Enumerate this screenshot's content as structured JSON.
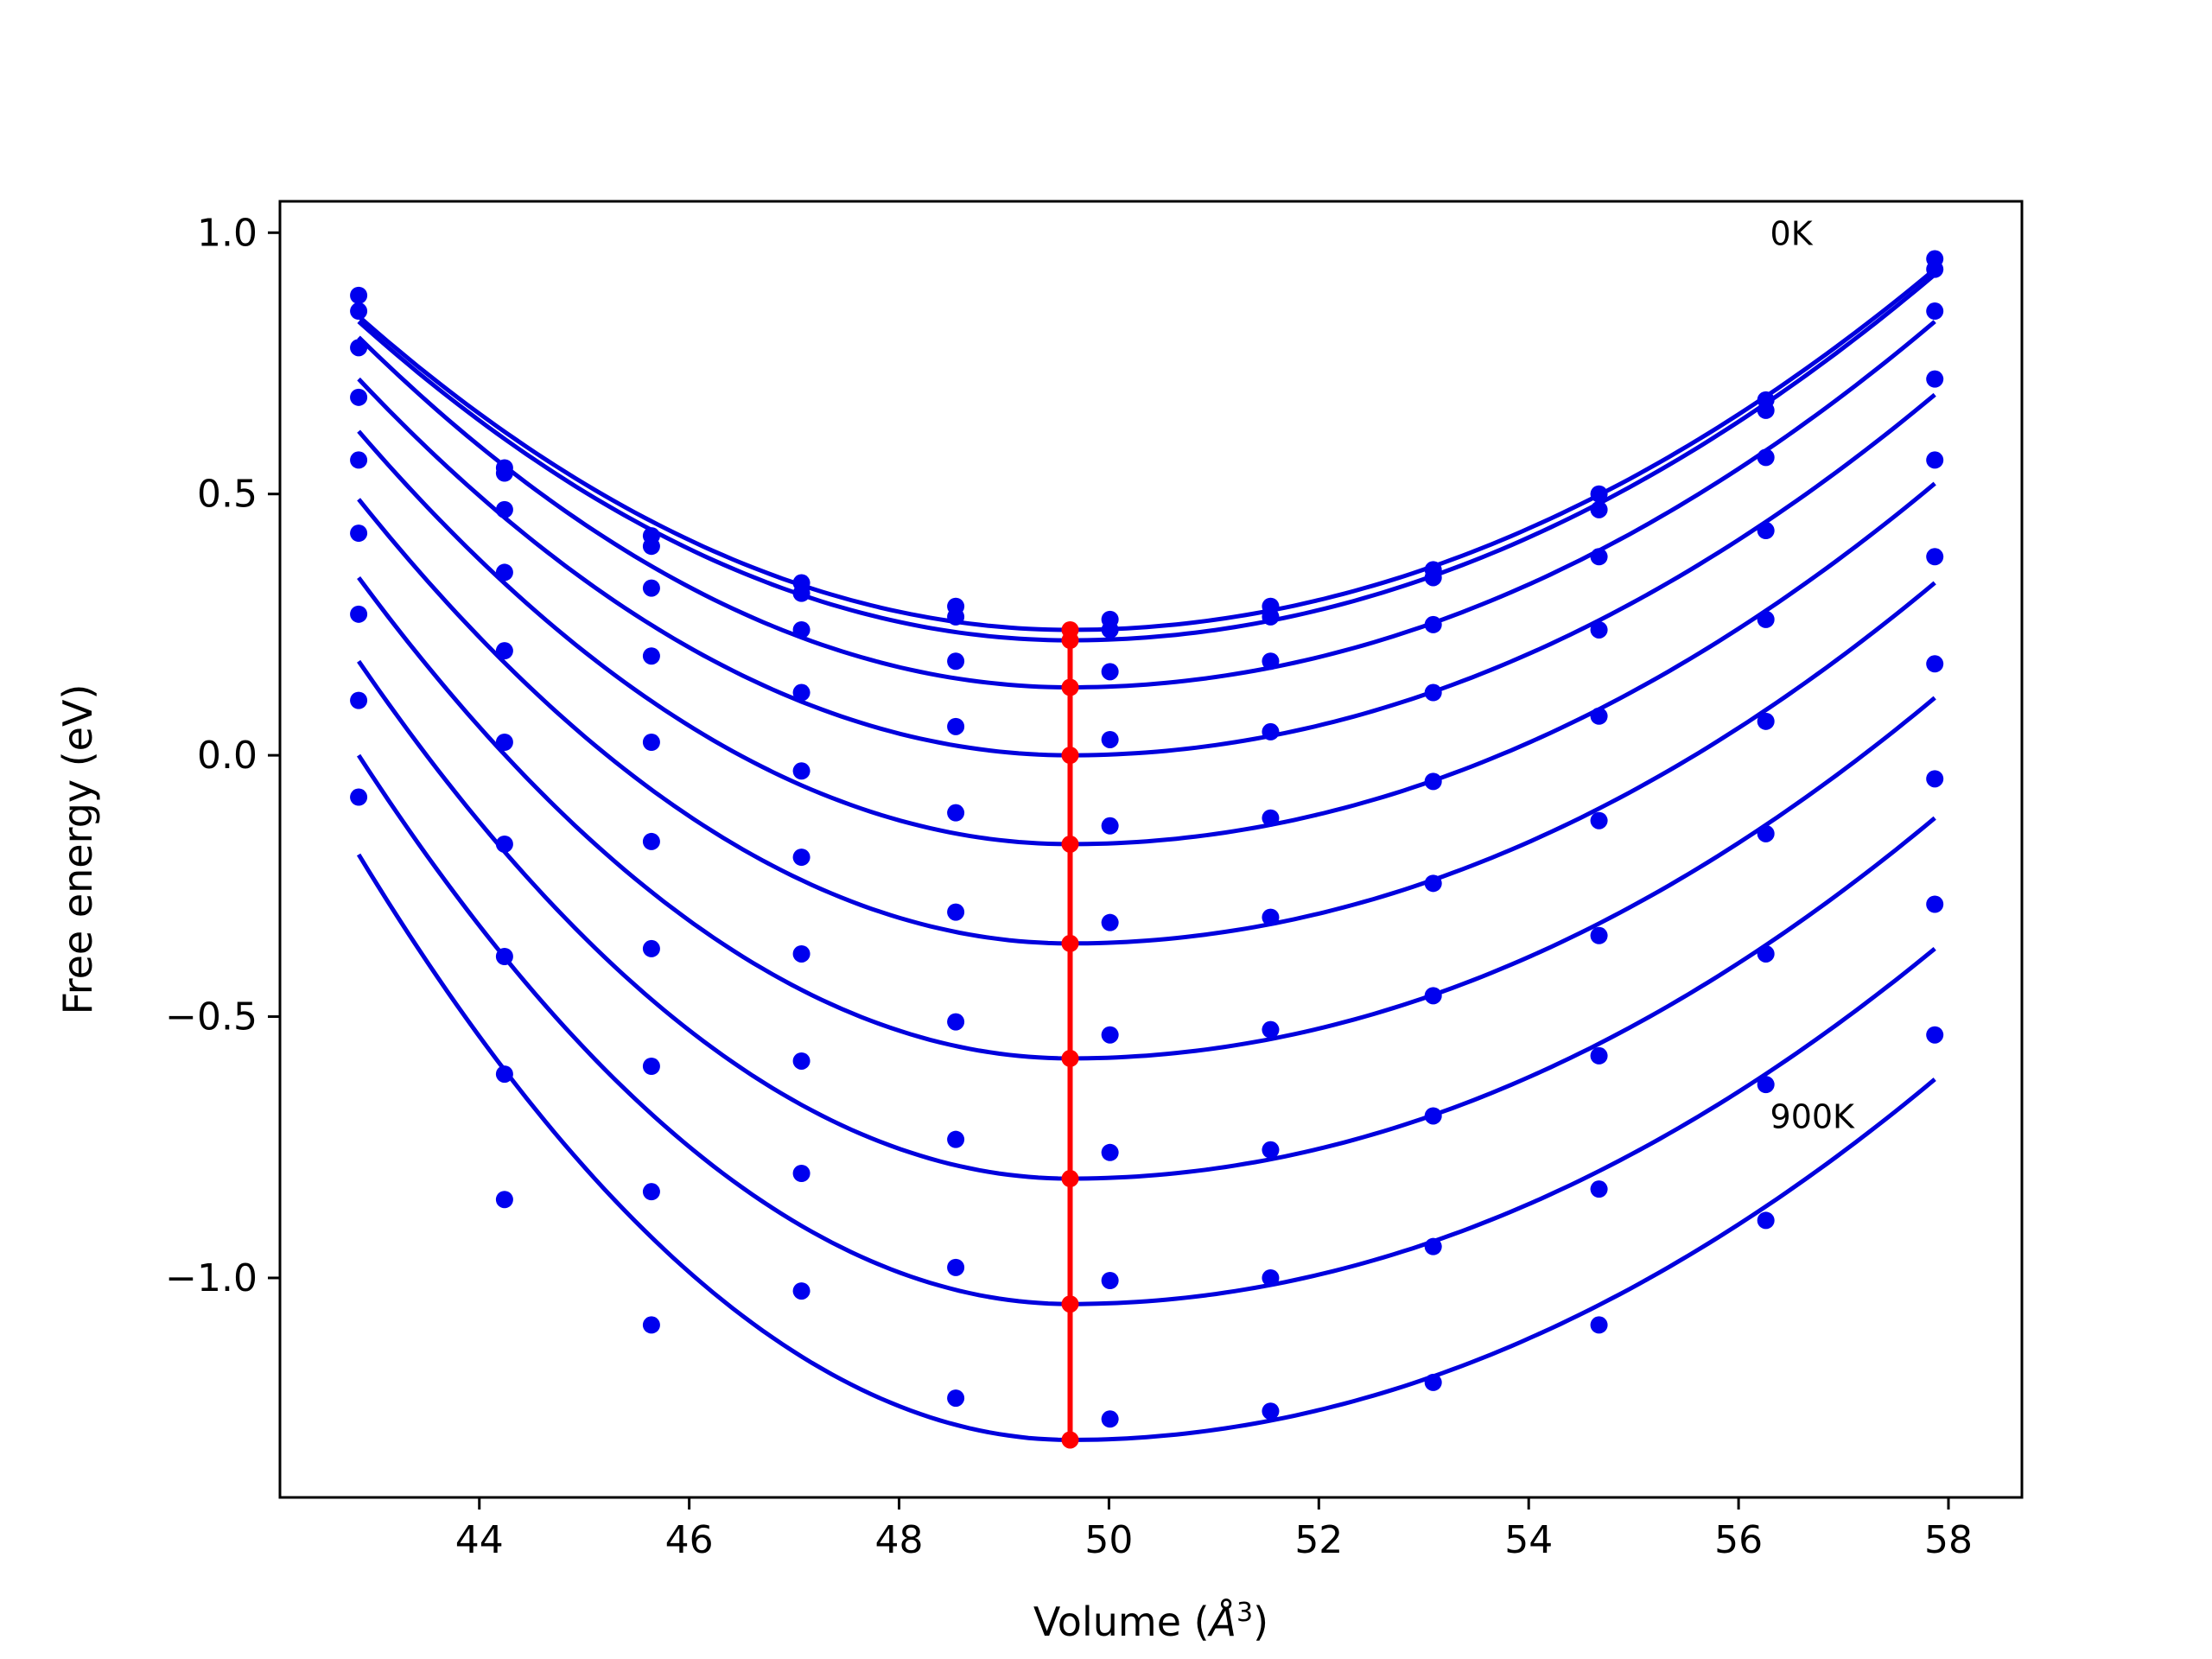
{
  "chart_data": {
    "type": "scatter",
    "xlabel": "Volume (",
    "xlabel_unit": "Å",
    "xlabel_sup": "3",
    "xlabel_end": ")",
    "ylabel": "Free energy (eV)",
    "xlim": [
      42.1,
      58.7
    ],
    "ylim": [
      -1.42,
      1.06
    ],
    "x_ticks": [
      44,
      46,
      48,
      50,
      52,
      54,
      56,
      58
    ],
    "y_ticks": [
      1.0,
      0.5,
      0.0,
      -0.5,
      -1.0
    ],
    "x_tick_labels": [
      "44",
      "46",
      "48",
      "50",
      "52",
      "54",
      "56",
      "58"
    ],
    "y_tick_labels": [
      "1.0",
      "0.5",
      "0.0",
      "−0.5",
      "−1.0"
    ],
    "grid": false,
    "colors": {
      "fit": "#0000dd",
      "points": "#0000ee",
      "minimum": "#ff0000",
      "axes": "#000000"
    },
    "annotations": [
      {
        "text": "0K",
        "x": 56.3,
        "y": 1.0
      },
      {
        "text": "900K",
        "x": 56.3,
        "y": -0.69
      }
    ],
    "volumes": [
      42.85,
      44.24,
      45.64,
      47.07,
      48.54,
      50.01,
      51.54,
      53.09,
      54.67,
      56.26,
      57.87
    ],
    "fit_range": [
      42.85,
      57.87
    ],
    "equilibrium_volume": 49.63,
    "series": [
      {
        "minimum": 0.24,
        "points": [
          0.88,
          0.55,
          0.42,
          0.33,
          0.285,
          0.26,
          0.285,
          0.355,
          0.5,
          0.68,
          0.95
        ]
      },
      {
        "minimum": 0.22,
        "points": [
          0.85,
          0.54,
          0.4,
          0.31,
          0.265,
          0.24,
          0.265,
          0.34,
          0.47,
          0.66,
          0.93
        ]
      },
      {
        "minimum": 0.13,
        "points": [
          0.78,
          0.47,
          0.32,
          0.24,
          0.18,
          0.16,
          0.18,
          0.25,
          0.38,
          0.57,
          0.85
        ]
      },
      {
        "minimum": 0.0,
        "points": [
          0.685,
          0.35,
          0.19,
          0.12,
          0.055,
          0.03,
          0.045,
          0.12,
          0.24,
          0.43,
          0.72
        ]
      },
      {
        "minimum": -0.17,
        "points": [
          0.565,
          0.2,
          0.025,
          -0.03,
          -0.11,
          -0.135,
          -0.12,
          -0.05,
          0.075,
          0.26,
          0.565
        ]
      },
      {
        "minimum": -0.36,
        "points": [
          0.425,
          0.025,
          -0.165,
          -0.195,
          -0.3,
          -0.32,
          -0.31,
          -0.245,
          -0.125,
          0.065,
          0.38
        ]
      },
      {
        "minimum": -0.58,
        "points": [
          0.27,
          -0.17,
          -0.37,
          -0.38,
          -0.51,
          -0.535,
          -0.525,
          -0.46,
          -0.345,
          -0.15,
          0.175
        ]
      },
      {
        "minimum": -0.81,
        "points": [
          0.105,
          -0.385,
          -0.595,
          -0.585,
          -0.735,
          -0.76,
          -0.755,
          -0.69,
          -0.575,
          -0.38,
          -0.045
        ]
      },
      {
        "minimum": -1.05,
        "points": [
          -0.08,
          -0.61,
          -0.835,
          -0.8,
          -0.98,
          -1.005,
          -1.0,
          -0.94,
          -0.83,
          -0.63,
          -0.285
        ]
      },
      {
        "minimum": -1.31,
        "points": [
          null,
          -0.85,
          -1.09,
          -1.025,
          -1.23,
          -1.27,
          -1.255,
          -1.2,
          -1.09,
          -0.89,
          -0.535
        ]
      }
    ],
    "fit_endpoints": [
      [
        0.84,
        0.93
      ],
      [
        0.83,
        0.92
      ],
      [
        0.8,
        0.83
      ],
      [
        0.72,
        0.69
      ],
      [
        0.62,
        0.52
      ],
      [
        0.49,
        0.33
      ],
      [
        0.34,
        0.11
      ],
      [
        0.18,
        -0.12
      ],
      [
        0.0,
        -0.37
      ],
      [
        -0.19,
        -0.62
      ]
    ]
  }
}
